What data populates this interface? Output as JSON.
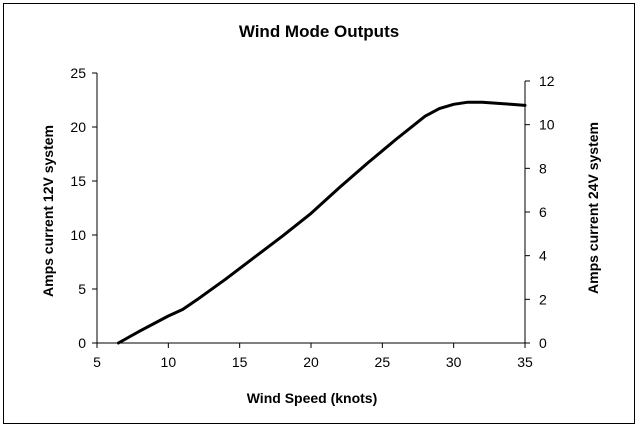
{
  "chart_data": {
    "type": "line",
    "title": "Wind Mode Outputs",
    "xlabel": "Wind Speed (knots)",
    "ylabel": "Amps current 12V system",
    "y2label": "Amps current 24V system",
    "xlim": [
      5,
      35
    ],
    "ylim": [
      0,
      25
    ],
    "y2lim": [
      0,
      12
    ],
    "xticks": [
      "5",
      "10",
      "15",
      "20",
      "25",
      "30",
      "35"
    ],
    "yticks": [
      "0",
      "5",
      "10",
      "15",
      "20",
      "25"
    ],
    "y2ticks": [
      "0",
      "2",
      "4",
      "6",
      "8",
      "10",
      "12"
    ],
    "grid": false,
    "legend": "none",
    "line_color": "#000000",
    "series": [
      {
        "x": [
          6.5,
          8,
          10,
          11,
          12,
          14,
          16,
          18,
          20,
          22,
          24,
          26,
          28,
          29,
          30,
          31,
          32,
          33,
          34,
          35
        ],
        "values": [
          0,
          1.1,
          2.5,
          3.1,
          4.0,
          5.9,
          7.9,
          9.9,
          12.0,
          14.4,
          16.7,
          18.9,
          21.0,
          21.7,
          22.1,
          22.3,
          22.3,
          22.2,
          22.1,
          22.0
        ]
      }
    ]
  }
}
